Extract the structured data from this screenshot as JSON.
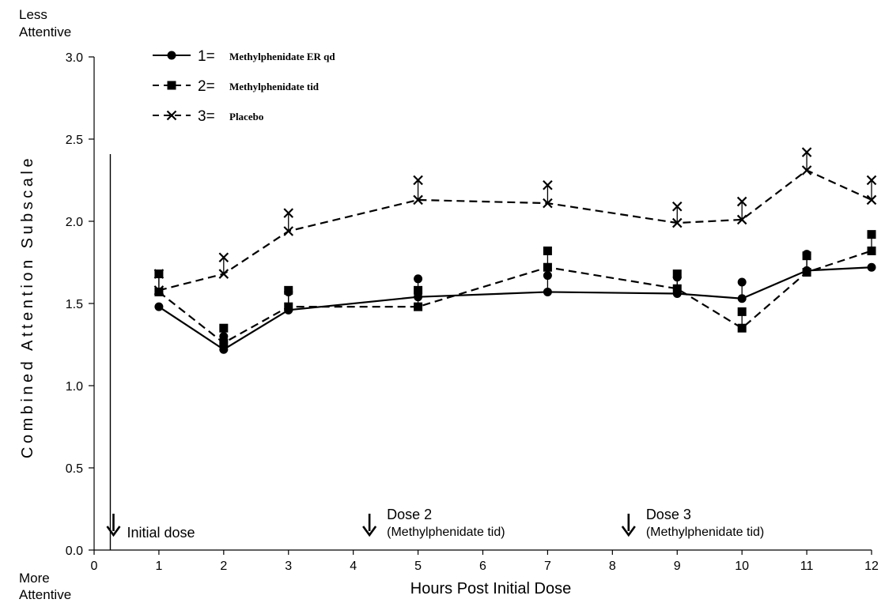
{
  "chart_data": {
    "type": "line",
    "xlabel": "Hours Post Initial Dose",
    "ylabel": "Combined Attention Subscale",
    "y_top_note": [
      "Less",
      "Attentive"
    ],
    "y_bottom_note": [
      "More",
      "Attentive"
    ],
    "xlim": [
      0,
      12
    ],
    "ylim": [
      0.0,
      3.0
    ],
    "x_ticks": [
      0,
      1,
      2,
      3,
      4,
      5,
      6,
      7,
      8,
      9,
      10,
      11,
      12
    ],
    "y_ticks": [
      0.0,
      0.5,
      1.0,
      1.5,
      2.0,
      2.5,
      3.0
    ],
    "y_tick_labels": [
      "0.0",
      "0.5",
      "1.0",
      "1.5",
      "2.0",
      "2.5",
      "3.0"
    ],
    "grid": false,
    "legend_position": "top-left",
    "series": [
      {
        "number": "1=",
        "name": "Methylphenidate ER qd",
        "marker": "circle",
        "line": "solid",
        "x": [
          1,
          2,
          3,
          5,
          7,
          9,
          10,
          11,
          12
        ],
        "y": [
          1.48,
          1.22,
          1.46,
          1.54,
          1.57,
          1.56,
          1.53,
          1.7,
          1.72
        ],
        "error_upper": [
          1.48,
          1.3,
          1.57,
          1.65,
          1.67,
          1.66,
          1.63,
          1.8,
          1.72
        ]
      },
      {
        "number": "2=",
        "name": "Methylphenidate tid",
        "marker": "square",
        "line": "dashed",
        "x": [
          1,
          2,
          3,
          5,
          7,
          9,
          10,
          11,
          12
        ],
        "y": [
          1.57,
          1.26,
          1.48,
          1.48,
          1.72,
          1.59,
          1.35,
          1.69,
          1.82
        ],
        "error_upper": [
          1.68,
          1.35,
          1.58,
          1.58,
          1.82,
          1.68,
          1.45,
          1.79,
          1.92
        ]
      },
      {
        "number": "3=",
        "name": "Placebo",
        "marker": "x",
        "line": "dashed",
        "x": [
          1,
          2,
          3,
          5,
          7,
          9,
          10,
          11,
          12
        ],
        "y": [
          1.58,
          1.68,
          1.94,
          2.13,
          2.11,
          1.99,
          2.01,
          2.31,
          2.13
        ],
        "error_upper": [
          1.68,
          1.78,
          2.05,
          2.25,
          2.22,
          2.09,
          2.12,
          2.42,
          2.25
        ]
      }
    ],
    "annotations": [
      {
        "x": 0.25,
        "lines": [
          "Initial dose"
        ]
      },
      {
        "x": 4.25,
        "lines": [
          "Dose 2",
          "(Methylphenidate tid)"
        ]
      },
      {
        "x": 8.25,
        "lines": [
          "Dose 3",
          "(Methylphenidate tid)"
        ]
      }
    ],
    "reference_line_x": 0.25
  }
}
